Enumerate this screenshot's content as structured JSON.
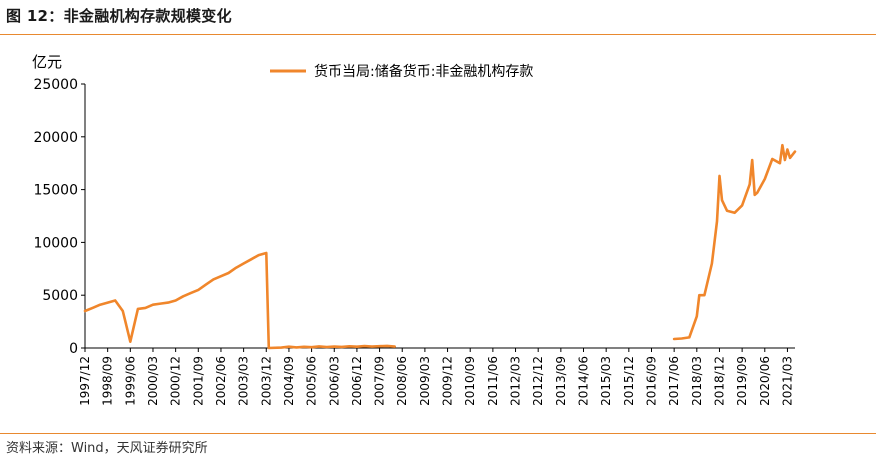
{
  "figure": {
    "title": "图 12：非金融机构存款规模变化",
    "source": "资料来源：Wind，天风证券研究所"
  },
  "chart_data": {
    "type": "line",
    "y_unit_label": "亿元",
    "ylim": [
      0,
      25000
    ],
    "y_ticks": [
      0,
      5000,
      10000,
      15000,
      20000,
      25000
    ],
    "x_tick_labels": [
      "1997/12",
      "1998/09",
      "1999/06",
      "2000/03",
      "2000/12",
      "2001/09",
      "2002/06",
      "2003/03",
      "2003/12",
      "2004/09",
      "2005/06",
      "2006/03",
      "2006/12",
      "2007/09",
      "2008/06",
      "2009/03",
      "2009/12",
      "2010/09",
      "2011/06",
      "2012/03",
      "2012/12",
      "2013/09",
      "2014/06",
      "2015/03",
      "2015/12",
      "2016/09",
      "2017/06",
      "2018/03",
      "2018/12",
      "2019/09",
      "2020/06",
      "2021/03"
    ],
    "xlim": [
      "1997/12",
      "2021/06"
    ],
    "grid": false,
    "legend_position": "top-center",
    "series": [
      {
        "name": "货币当局:储备货币:非金融机构存款",
        "color": "#f0862b",
        "segments": [
          [
            [
              "1997/12",
              3500
            ],
            [
              "1998/03",
              3800
            ],
            [
              "1998/06",
              4100
            ],
            [
              "1998/09",
              4300
            ],
            [
              "1998/12",
              4500
            ],
            [
              "1999/03",
              3500
            ],
            [
              "1999/06",
              600
            ],
            [
              "1999/09",
              3700
            ],
            [
              "1999/12",
              3800
            ],
            [
              "2000/03",
              4100
            ],
            [
              "2000/06",
              4200
            ],
            [
              "2000/09",
              4300
            ],
            [
              "2000/12",
              4500
            ],
            [
              "2001/03",
              4900
            ],
            [
              "2001/06",
              5200
            ],
            [
              "2001/09",
              5500
            ],
            [
              "2001/12",
              6000
            ],
            [
              "2002/03",
              6500
            ],
            [
              "2002/06",
              6800
            ],
            [
              "2002/09",
              7100
            ],
            [
              "2002/12",
              7600
            ],
            [
              "2003/03",
              8000
            ],
            [
              "2003/06",
              8400
            ],
            [
              "2003/09",
              8800
            ],
            [
              "2003/12",
              9000
            ],
            [
              "2004/01",
              0
            ],
            [
              "2004/06",
              40
            ],
            [
              "2004/09",
              120
            ],
            [
              "2004/12",
              60
            ],
            [
              "2005/03",
              110
            ],
            [
              "2005/06",
              80
            ],
            [
              "2005/09",
              150
            ],
            [
              "2005/12",
              90
            ],
            [
              "2006/03",
              130
            ],
            [
              "2006/06",
              100
            ],
            [
              "2006/09",
              160
            ],
            [
              "2006/12",
              120
            ],
            [
              "2007/03",
              180
            ],
            [
              "2007/06",
              130
            ],
            [
              "2007/09",
              170
            ],
            [
              "2007/12",
              200
            ],
            [
              "2008/03",
              130
            ]
          ],
          [
            [
              "2017/06",
              850
            ],
            [
              "2017/09",
              900
            ],
            [
              "2017/12",
              1000
            ],
            [
              "2018/03",
              3000
            ],
            [
              "2018/04",
              5000
            ],
            [
              "2018/06",
              5000
            ],
            [
              "2018/09",
              8000
            ],
            [
              "2018/11",
              12000
            ],
            [
              "2018/12",
              16300
            ],
            [
              "2019/01",
              14000
            ],
            [
              "2019/03",
              13000
            ],
            [
              "2019/06",
              12800
            ],
            [
              "2019/09",
              13500
            ],
            [
              "2019/12",
              15500
            ],
            [
              "2020/01",
              17800
            ],
            [
              "2020/02",
              14500
            ],
            [
              "2020/03",
              14700
            ],
            [
              "2020/06",
              16000
            ],
            [
              "2020/09",
              17900
            ],
            [
              "2020/12",
              17500
            ],
            [
              "2021/01",
              19200
            ],
            [
              "2021/02",
              17800
            ],
            [
              "2021/03",
              18800
            ],
            [
              "2021/04",
              18000
            ],
            [
              "2021/06",
              18600
            ]
          ]
        ]
      }
    ]
  }
}
